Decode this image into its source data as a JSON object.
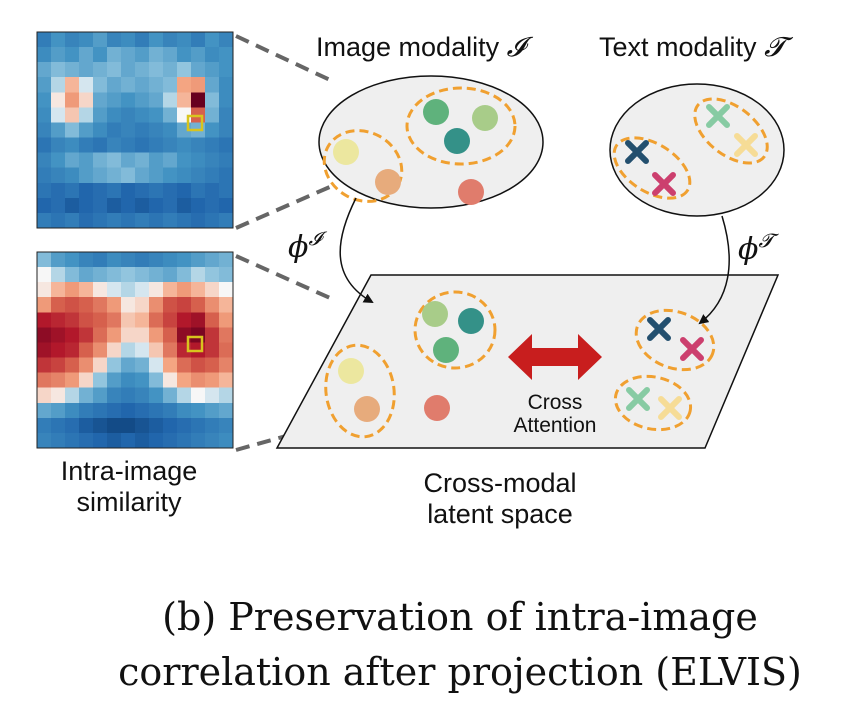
{
  "labels": {
    "image_modality": "Image modality",
    "image_modality_symbol": "𝓘",
    "text_modality": "Text modality",
    "text_modality_symbol": "𝓣",
    "phi": "ϕ",
    "phi_image_sup": "𝓘",
    "phi_text_sup": "𝓣",
    "cross_attention_line1": "Cross",
    "cross_attention_line2": "Attention",
    "latent_line1": "Cross-modal",
    "latent_line2": "latent space",
    "intra_line1": "Intra-image",
    "intra_line2": "similarity"
  },
  "caption": {
    "line1": "(b) Preservation of intra-image",
    "line2": "correlation after projection (ELVIS)"
  },
  "colors": {
    "ellipse_fill": "#efefef",
    "dash_orange": "#f0a030",
    "arrow_red": "#c81e1e",
    "circle_yellow": "#ece79f",
    "circle_orange": "#e7ab7c",
    "circle_green": "#5fb27c",
    "circle_lightgreen": "#a8cc89",
    "circle_teal": "#349188",
    "circle_salmon": "#e07c6c",
    "cross_navy": "#234f6e",
    "cross_magenta": "#cc3f6e",
    "cross_mint": "#87cba3",
    "cross_cream": "#f6dc96",
    "highlight_box": "#d8c41e"
  },
  "heatmaps": {
    "top": [
      [
        -0.55,
        -0.4,
        -0.5,
        -0.45,
        -0.35,
        -0.5,
        -0.45,
        -0.55,
        -0.4,
        -0.5,
        -0.45,
        -0.55,
        -0.4,
        -0.5
      ],
      [
        -0.45,
        -0.35,
        -0.4,
        -0.3,
        -0.4,
        -0.25,
        -0.3,
        -0.35,
        -0.25,
        -0.3,
        -0.4,
        -0.35,
        -0.45,
        -0.4
      ],
      [
        -0.3,
        -0.2,
        -0.25,
        -0.3,
        -0.25,
        -0.2,
        -0.3,
        -0.25,
        -0.2,
        -0.25,
        -0.15,
        -0.3,
        -0.35,
        -0.4
      ],
      [
        -0.35,
        -0.1,
        0.2,
        -0.05,
        -0.2,
        -0.3,
        -0.25,
        -0.3,
        -0.25,
        -0.2,
        0.25,
        0.3,
        -0.3,
        -0.45
      ],
      [
        -0.4,
        0.05,
        0.3,
        0.1,
        -0.3,
        -0.35,
        -0.4,
        -0.35,
        -0.3,
        -0.1,
        0.2,
        1.0,
        -0.2,
        -0.45
      ],
      [
        -0.45,
        -0.05,
        0.15,
        -0.1,
        -0.35,
        -0.45,
        -0.5,
        -0.45,
        -0.4,
        -0.25,
        0.0,
        0.55,
        -0.25,
        -0.5
      ],
      [
        -0.5,
        -0.35,
        -0.2,
        -0.35,
        -0.45,
        -0.55,
        -0.5,
        -0.55,
        -0.5,
        -0.45,
        -0.3,
        -0.25,
        -0.4,
        -0.5
      ],
      [
        -0.6,
        -0.5,
        -0.45,
        -0.55,
        -0.6,
        -0.5,
        -0.55,
        -0.6,
        -0.55,
        -0.5,
        -0.45,
        -0.5,
        -0.55,
        -0.6
      ],
      [
        -0.5,
        -0.4,
        -0.3,
        -0.35,
        -0.25,
        -0.2,
        -0.3,
        -0.25,
        -0.35,
        -0.3,
        -0.4,
        -0.45,
        -0.5,
        -0.55
      ],
      [
        -0.55,
        -0.5,
        -0.45,
        -0.35,
        -0.3,
        -0.25,
        -0.2,
        -0.3,
        -0.35,
        -0.4,
        -0.45,
        -0.5,
        -0.55,
        -0.6
      ],
      [
        -0.6,
        -0.65,
        -0.6,
        -0.7,
        -0.65,
        -0.6,
        -0.7,
        -0.65,
        -0.6,
        -0.65,
        -0.7,
        -0.6,
        -0.65,
        -0.6
      ],
      [
        -0.7,
        -0.65,
        -0.75,
        -0.7,
        -0.65,
        -0.75,
        -0.7,
        -0.75,
        -0.7,
        -0.65,
        -0.75,
        -0.7,
        -0.65,
        -0.7
      ],
      [
        -0.55,
        -0.6,
        -0.55,
        -0.65,
        -0.6,
        -0.55,
        -0.6,
        -0.55,
        -0.6,
        -0.55,
        -0.6,
        -0.65,
        -0.6,
        -0.55
      ]
    ],
    "bottom": [
      [
        -0.2,
        -0.35,
        -0.4,
        -0.5,
        -0.55,
        -0.45,
        -0.5,
        -0.55,
        -0.5,
        -0.45,
        -0.4,
        -0.35,
        -0.3,
        -0.25
      ],
      [
        0.0,
        -0.1,
        -0.2,
        -0.3,
        -0.25,
        -0.2,
        -0.15,
        -0.2,
        -0.25,
        -0.3,
        -0.2,
        -0.1,
        -0.15,
        -0.2
      ],
      [
        0.05,
        0.2,
        0.3,
        0.2,
        0.05,
        -0.05,
        -0.1,
        -0.05,
        0.05,
        0.2,
        0.3,
        0.2,
        0.1,
        0.0
      ],
      [
        0.3,
        0.55,
        0.6,
        0.55,
        0.45,
        0.3,
        0.05,
        0.1,
        0.35,
        0.6,
        0.65,
        0.55,
        0.35,
        0.2
      ],
      [
        0.8,
        0.75,
        0.7,
        0.6,
        0.55,
        0.45,
        0.15,
        0.2,
        0.5,
        0.65,
        0.8,
        0.85,
        0.55,
        0.3
      ],
      [
        0.9,
        0.85,
        0.8,
        0.7,
        0.5,
        0.3,
        0.1,
        0.1,
        0.3,
        0.55,
        0.9,
        0.95,
        0.7,
        0.45
      ],
      [
        0.85,
        0.8,
        0.75,
        0.55,
        0.35,
        0.1,
        -0.1,
        -0.05,
        0.15,
        0.45,
        0.75,
        0.8,
        0.7,
        0.5
      ],
      [
        0.7,
        0.65,
        0.55,
        0.35,
        0.1,
        -0.15,
        -0.3,
        -0.25,
        -0.05,
        0.25,
        0.5,
        0.6,
        0.55,
        0.4
      ],
      [
        0.45,
        0.4,
        0.3,
        0.1,
        -0.15,
        -0.35,
        -0.45,
        -0.4,
        -0.2,
        0.05,
        0.25,
        0.35,
        0.3,
        0.2
      ],
      [
        0.1,
        0.05,
        -0.1,
        -0.25,
        -0.35,
        -0.5,
        -0.55,
        -0.5,
        -0.4,
        -0.25,
        -0.1,
        0.0,
        -0.05,
        -0.1
      ],
      [
        -0.3,
        -0.35,
        -0.45,
        -0.55,
        -0.6,
        -0.65,
        -0.7,
        -0.65,
        -0.6,
        -0.55,
        -0.45,
        -0.4,
        -0.35,
        -0.3
      ],
      [
        -0.55,
        -0.6,
        -0.65,
        -0.75,
        -0.8,
        -0.85,
        -0.85,
        -0.8,
        -0.75,
        -0.7,
        -0.65,
        -0.6,
        -0.55,
        -0.5
      ],
      [
        -0.5,
        -0.55,
        -0.6,
        -0.65,
        -0.7,
        -0.75,
        -0.7,
        -0.75,
        -0.7,
        -0.65,
        -0.6,
        -0.55,
        -0.5,
        -0.45
      ]
    ]
  }
}
